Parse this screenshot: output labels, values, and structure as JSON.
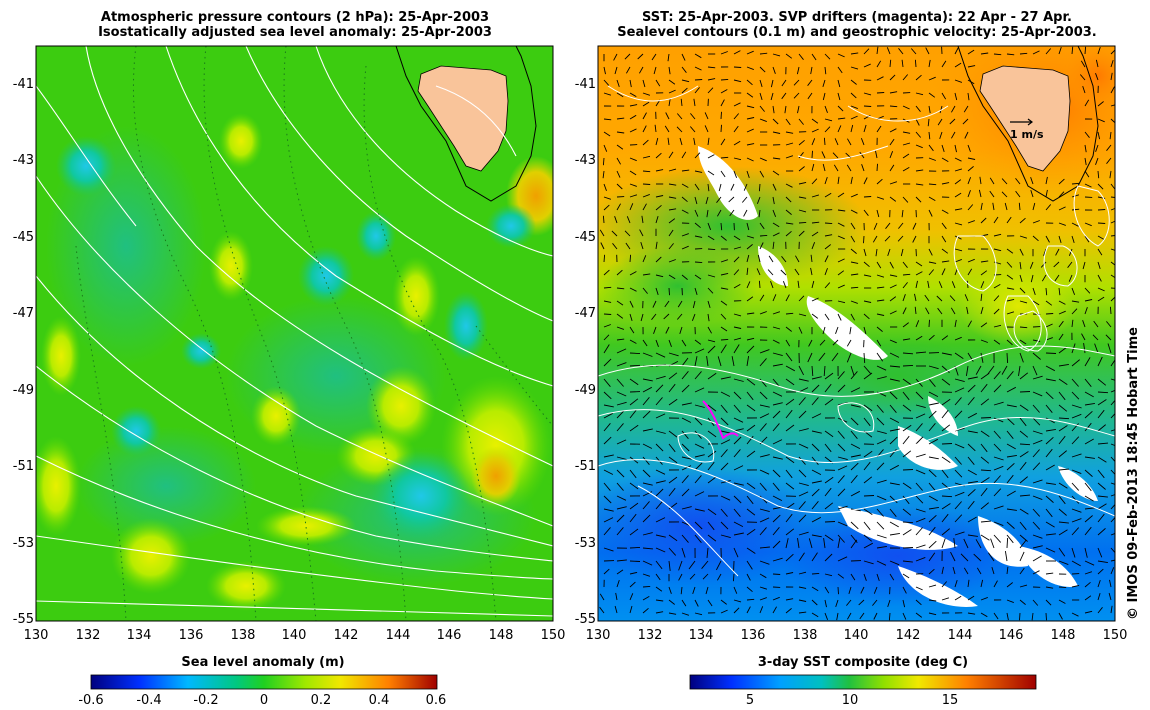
{
  "left_panel": {
    "title_line1": "Atmospheric pressure contours (2 hPa): 25-Apr-2003",
    "title_line2": "Isostatically adjusted sea level anomaly: 25-Apr-2003",
    "colorbar_label": "Sea level anomaly (m)",
    "colorbar_ticks": [
      "-0.6",
      "-0.4",
      "-0.2",
      "0",
      "0.2",
      "0.4",
      "0.6"
    ]
  },
  "right_panel": {
    "title_line1": "SST: 25-Apr-2003. SVP drifters (magenta): 22 Apr - 27 Apr.",
    "title_line2": "Sealevel contours (0.1 m) and geostrophic velocity: 25-Apr-2003.",
    "colorbar_label": "3-day SST composite (deg C)",
    "colorbar_ticks": [
      "5",
      "10",
      "15"
    ],
    "velocity_scale_label": "1 m/s"
  },
  "axes": {
    "x_ticks": [
      "130",
      "132",
      "134",
      "136",
      "138",
      "140",
      "142",
      "144",
      "146",
      "148",
      "150"
    ],
    "y_ticks": [
      "-41",
      "-43",
      "-45",
      "-47",
      "-49",
      "-51",
      "-53",
      "-55"
    ]
  },
  "credit": "© IMOS 09-Feb-2013 18:45 Hobart Time",
  "colors": {
    "land": "#f9c49a",
    "contour_white": "#ffffff",
    "drifter_magenta": "#ff00ff",
    "sla_scale": [
      "#00007f",
      "#0040ff",
      "#00c0ff",
      "#00d060",
      "#40e000",
      "#c0f000",
      "#ffd000",
      "#ff6000",
      "#a00000"
    ],
    "sst_scale": [
      "#00007f",
      "#0050ff",
      "#00c0e0",
      "#20c060",
      "#80e000",
      "#e0f000",
      "#ffb000",
      "#ff5000",
      "#a00000"
    ]
  }
}
